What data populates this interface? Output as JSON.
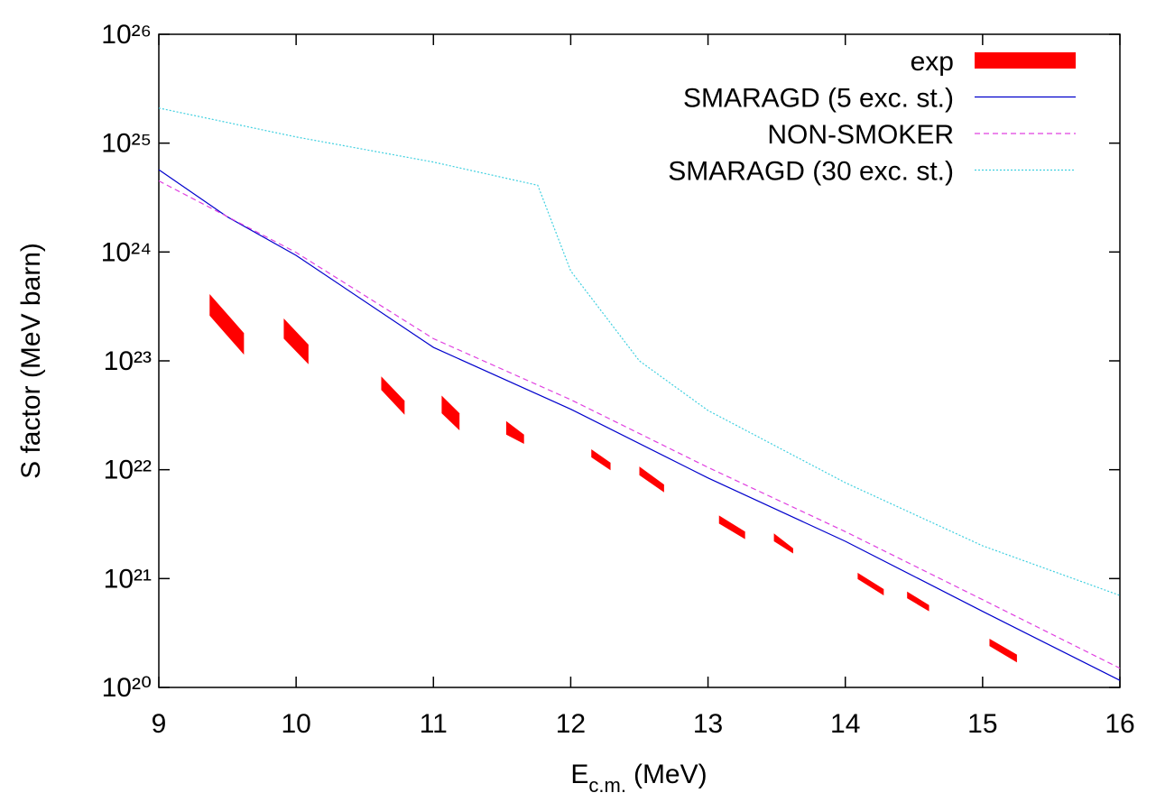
{
  "chart_data": {
    "type": "line",
    "x_label": [
      "E",
      "c.m.",
      "(MeV)"
    ],
    "y_label": "S factor (MeV barn)",
    "xlim": [
      9,
      16
    ],
    "ylim": [
      1e+20,
      1e+26
    ],
    "log_y": true,
    "xticks": [
      9,
      10,
      11,
      12,
      13,
      14,
      15,
      16
    ],
    "yticks": [
      {
        "value": 1e+20,
        "label": "10²⁰"
      },
      {
        "value": 1e+21,
        "label": "10²¹"
      },
      {
        "value": 1e+22,
        "label": "10²²"
      },
      {
        "value": 1e+23,
        "label": "10²³"
      },
      {
        "value": 1e+24,
        "label": "10²⁴"
      },
      {
        "value": 1e+25,
        "label": "10²⁵"
      },
      {
        "value": 1e+26,
        "label": "10²⁶"
      }
    ],
    "legend": "top-right",
    "series": [
      {
        "name": "exp",
        "color": "#ff0000",
        "style": "band",
        "x_start": [
          9.37,
          9.91,
          10.62,
          11.06,
          11.53,
          12.15,
          12.5,
          13.08,
          13.48,
          14.09,
          14.45,
          15.05
        ],
        "x_end": [
          9.62,
          10.09,
          10.79,
          11.19,
          11.66,
          12.29,
          12.68,
          13.27,
          13.62,
          14.28,
          14.61,
          15.25
        ],
        "y_start_upper": [
          4.1e+23,
          2.45e+23,
          7.2e+22,
          4.8e+22,
          2.8e+22,
          1.54e+22,
          1.07e+22,
          3.8e+21,
          2.6e+21,
          1.13e+21,
          7.6e+20,
          2.8e+20
        ],
        "y_start_lower": [
          2.6e+23,
          1.6e+23,
          5.4e+22,
          3.3e+22,
          2.1e+22,
          1.3e+22,
          8.9e+21,
          3.2e+21,
          2.2e+21,
          9.9e+20,
          6.6e+20,
          2.4e+20
        ],
        "y_end_upper": [
          1.8e+23,
          1.41e+23,
          4.3e+22,
          3.3e+22,
          2.1e+22,
          1.16e+22,
          7.3e+21,
          2.7e+21,
          1.9e+21,
          8e+20,
          5.7e+20,
          2e+20
        ],
        "y_end_lower": [
          1.14e+23,
          9.3e+22,
          3.2e+22,
          2.3e+22,
          1.73e+22,
          9.9e+21,
          6.2e+21,
          2.3e+21,
          1.7e+21,
          7e+20,
          5e+20,
          1.7e+20
        ]
      },
      {
        "name": "SMARAGD (5 exc. st.)",
        "color": "#0000cc",
        "style": "solid",
        "x": [
          9,
          9.5,
          10,
          11,
          12,
          13,
          14,
          15,
          16
        ],
        "values": [
          5.7e+24,
          2.1e+24,
          9.3e+23,
          1.33e+23,
          3.6e+22,
          8.4e+21,
          2.2e+21,
          5e+20,
          1.16e+20
        ]
      },
      {
        "name": "NON-SMOKER",
        "color": "#e040e0",
        "style": "dashed",
        "x": [
          9,
          10,
          11,
          12,
          13,
          14,
          15,
          16
        ],
        "values": [
          4.5e+24,
          9.9e+23,
          1.6e+23,
          4.4e+22,
          1.05e+22,
          2.7e+21,
          6.4e+20,
          1.5e+20
        ]
      },
      {
        "name": "SMARAGD (30 exc. st.)",
        "color": "#40d0e0",
        "style": "dotted",
        "x": [
          9,
          10,
          11,
          11.76,
          12,
          12.5,
          13,
          14,
          15,
          16
        ],
        "values": [
          2.1e+25,
          1.14e+25,
          6.7e+24,
          4.1e+24,
          6.7e+23,
          1e+23,
          3.5e+22,
          7.6e+21,
          2e+21,
          7e+20
        ]
      }
    ]
  }
}
